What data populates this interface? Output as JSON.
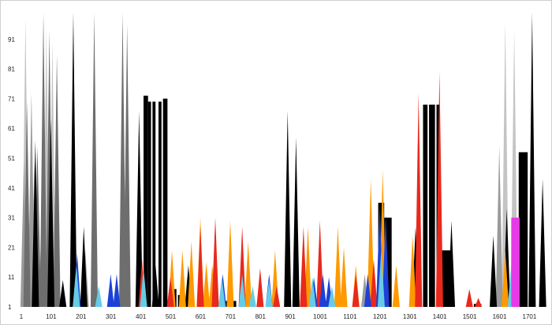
{
  "chart_data": {
    "type": "area",
    "title": "",
    "xlabel": "",
    "ylabel": "",
    "xlim": [
      1,
      1750
    ],
    "ylim": [
      1,
      101
    ],
    "grid": false,
    "legend": "none",
    "x_ticks": [
      "1",
      "101",
      "201",
      "301",
      "401",
      "501",
      "601",
      "701",
      "801",
      "901",
      "1001",
      "1101",
      "1201",
      "1301",
      "1401",
      "1501",
      "1601",
      "1701"
    ],
    "y_ticks": [
      "1",
      "11",
      "21",
      "31",
      "41",
      "51",
      "61",
      "71",
      "81",
      "91"
    ],
    "series": [
      {
        "color": "#c4c4c4",
        "spikes": [
          [
            15,
            98
          ],
          [
            85,
            94
          ],
          [
            105,
            90
          ],
          [
            1620,
            97
          ],
          [
            1650,
            94
          ]
        ]
      },
      {
        "color": "#9a9a9a",
        "spikes": [
          [
            10,
            50
          ],
          [
            35,
            73
          ],
          [
            45,
            50
          ],
          [
            70,
            30
          ],
          [
            215,
            20
          ],
          [
            640,
            15
          ],
          [
            1150,
            12
          ],
          [
            1600,
            55
          ]
        ]
      },
      {
        "color": "#6e6e6e",
        "spikes": [
          [
            20,
            70
          ],
          [
            55,
            55
          ],
          [
            75,
            100
          ],
          [
            95,
            94
          ],
          [
            120,
            86
          ],
          [
            245,
            100
          ],
          [
            300,
            10
          ],
          [
            340,
            100
          ],
          [
            355,
            96
          ]
        ]
      },
      {
        "color": "#000000",
        "spikes": [
          [
            48,
            57
          ],
          [
            100,
            64
          ],
          [
            140,
            10
          ],
          [
            175,
            100
          ],
          [
            210,
            28
          ],
          [
            395,
            67
          ],
          [
            450,
            15
          ],
          [
            560,
            15
          ],
          [
            850,
            15
          ],
          [
            892,
            67
          ],
          [
            920,
            58
          ],
          [
            1320,
            28
          ],
          [
            1440,
            30
          ],
          [
            1580,
            25
          ],
          [
            1625,
            34
          ],
          [
            1710,
            100
          ],
          [
            1745,
            44
          ]
        ],
        "blocks": [
          [
            410,
            425,
            72
          ],
          [
            425,
            435,
            70
          ],
          [
            440,
            450,
            70
          ],
          [
            460,
            470,
            70
          ],
          [
            475,
            490,
            71
          ],
          [
            495,
            505,
            5
          ],
          [
            510,
            520,
            7
          ],
          [
            525,
            545,
            5
          ],
          [
            680,
            720,
            3
          ],
          [
            1000,
            1040,
            3
          ],
          [
            1195,
            1215,
            36
          ],
          [
            1215,
            1240,
            31
          ],
          [
            1345,
            1360,
            69
          ],
          [
            1365,
            1385,
            69
          ],
          [
            1390,
            1400,
            69
          ],
          [
            1405,
            1440,
            20
          ],
          [
            1515,
            1540,
            2
          ],
          [
            1665,
            1695,
            53
          ]
        ]
      },
      {
        "color": "#ff9900",
        "spikes": [
          [
            505,
            20
          ],
          [
            540,
            20
          ],
          [
            570,
            23
          ],
          [
            600,
            31
          ],
          [
            620,
            16
          ],
          [
            640,
            15
          ],
          [
            700,
            30
          ],
          [
            760,
            23
          ],
          [
            850,
            20
          ],
          [
            960,
            28
          ],
          [
            1060,
            28
          ],
          [
            1080,
            21
          ],
          [
            1120,
            15
          ],
          [
            1170,
            44
          ],
          [
            1210,
            47
          ],
          [
            1255,
            15
          ],
          [
            1310,
            25
          ],
          [
            1620,
            20
          ],
          [
            1655,
            15
          ]
        ]
      },
      {
        "color": "#e8291c",
        "spikes": [
          [
            405,
            17
          ],
          [
            500,
            11
          ],
          [
            600,
            28
          ],
          [
            650,
            31
          ],
          [
            740,
            28
          ],
          [
            800,
            14
          ],
          [
            855,
            8
          ],
          [
            945,
            28
          ],
          [
            1000,
            30
          ],
          [
            1120,
            12
          ],
          [
            1180,
            17
          ],
          [
            1330,
            73
          ],
          [
            1400,
            80
          ],
          [
            1500,
            7
          ],
          [
            1530,
            4
          ]
        ]
      },
      {
        "color": "#1c40d8",
        "spikes": [
          [
            188,
            19
          ],
          [
            300,
            12
          ],
          [
            320,
            12
          ],
          [
            675,
            12
          ],
          [
            740,
            11
          ],
          [
            830,
            12
          ],
          [
            980,
            11
          ],
          [
            1010,
            12
          ],
          [
            1030,
            11
          ],
          [
            1160,
            12
          ],
          [
            1200,
            35
          ],
          [
            1220,
            32
          ]
        ]
      },
      {
        "color": "#66cce6",
        "spikes": [
          [
            185,
            15
          ],
          [
            260,
            8
          ],
          [
            410,
            14
          ],
          [
            672,
            11
          ],
          [
            740,
            12
          ],
          [
            775,
            8
          ],
          [
            830,
            10
          ],
          [
            975,
            11
          ],
          [
            1040,
            8
          ],
          [
            1205,
            20
          ],
          [
            1640,
            15
          ]
        ]
      },
      {
        "color": "#e63ae6",
        "blocks": [
          [
            1640,
            1668,
            31
          ]
        ]
      }
    ]
  }
}
